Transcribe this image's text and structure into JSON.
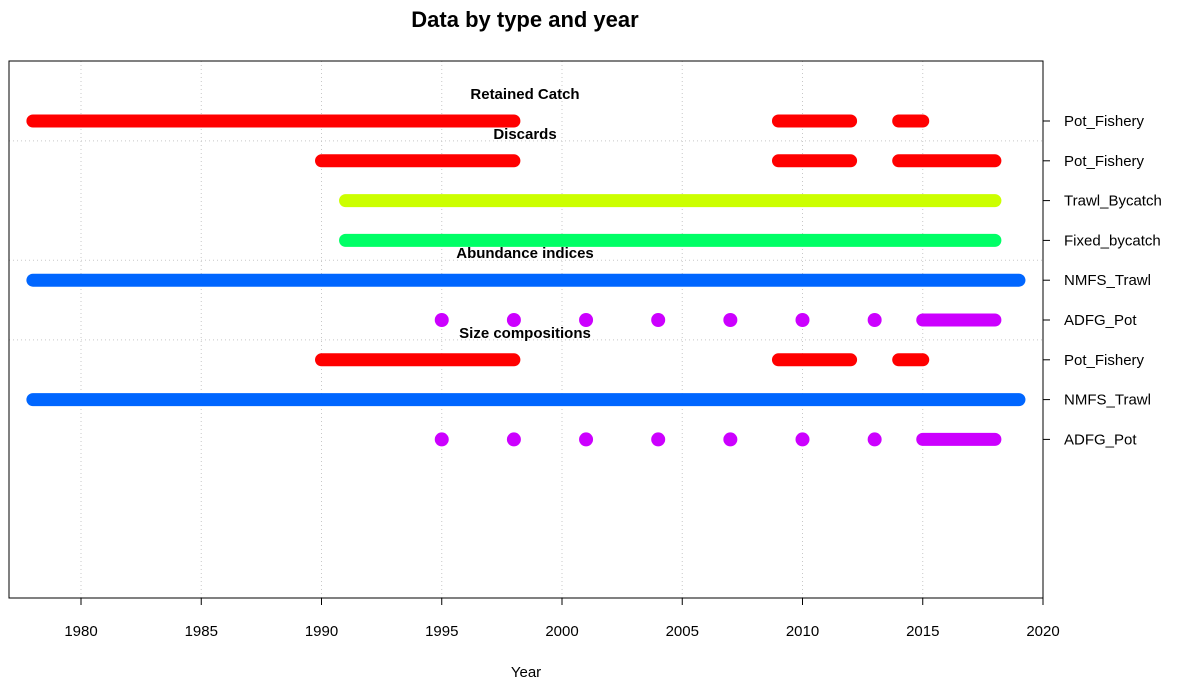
{
  "chart_data": {
    "type": "timeline",
    "title": "Data by type and year",
    "xlabel": "Year",
    "ylabel": "",
    "xlim": [
      1977,
      2020
    ],
    "x_ticks": [
      1980,
      1985,
      1990,
      1995,
      2000,
      2005,
      2010,
      2015,
      2020
    ],
    "grid": true,
    "colors": {
      "Pot_Fishery": "#ff0000",
      "Trawl_Bycatch": "#ccff00",
      "Fixed_bycatch": "#00ff66",
      "NMFS_Trawl": "#0066ff",
      "ADFG_Pot": "#cc00ff"
    },
    "groups": [
      {
        "label": "Retained Catch",
        "rows": [
          {
            "name": "Pot_Fishery",
            "segments": [
              [
                1978,
                1998
              ],
              [
                2009,
                2012
              ],
              [
                2014,
                2015
              ]
            ],
            "points": []
          }
        ]
      },
      {
        "label": "Discards",
        "rows": [
          {
            "name": "Pot_Fishery",
            "segments": [
              [
                1990,
                1998
              ],
              [
                2009,
                2012
              ],
              [
                2014,
                2018
              ]
            ],
            "points": []
          },
          {
            "name": "Trawl_Bycatch",
            "segments": [
              [
                1991,
                2018
              ]
            ],
            "points": []
          },
          {
            "name": "Fixed_bycatch",
            "segments": [
              [
                1991,
                2018
              ]
            ],
            "points": []
          }
        ]
      },
      {
        "label": "Abundance indices",
        "rows": [
          {
            "name": "NMFS_Trawl",
            "segments": [
              [
                1978,
                2019
              ]
            ],
            "points": []
          },
          {
            "name": "ADFG_Pot",
            "segments": [
              [
                2015,
                2018
              ]
            ],
            "points": [
              1995,
              1998,
              2001,
              2004,
              2007,
              2010,
              2013
            ]
          }
        ]
      },
      {
        "label": "Size compositions",
        "rows": [
          {
            "name": "Pot_Fishery",
            "segments": [
              [
                1990,
                1998
              ],
              [
                2009,
                2012
              ],
              [
                2014,
                2015
              ]
            ],
            "points": []
          },
          {
            "name": "NMFS_Trawl",
            "segments": [
              [
                1978,
                2019
              ]
            ],
            "points": []
          },
          {
            "name": "ADFG_Pot",
            "segments": [
              [
                2015,
                2018
              ]
            ],
            "points": [
              1995,
              1998,
              2001,
              2004,
              2007,
              2010,
              2013
            ]
          }
        ]
      }
    ]
  }
}
